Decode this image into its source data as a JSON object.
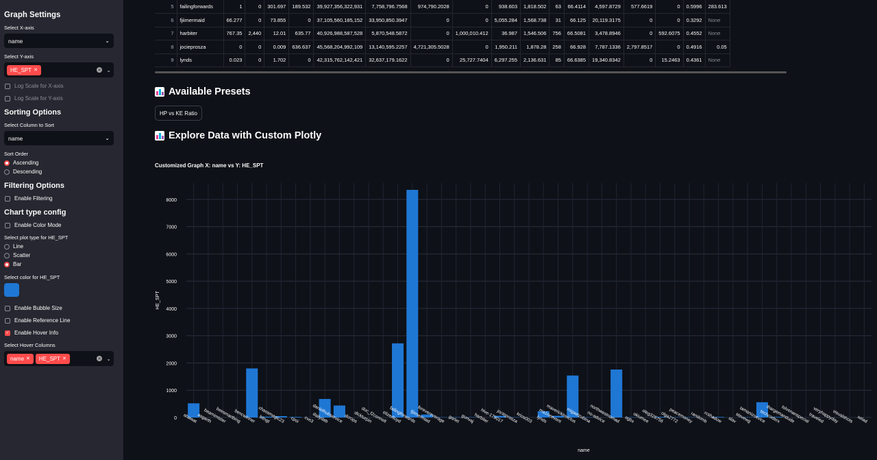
{
  "sidebar": {
    "title": "Graph Settings",
    "x_axis_label": "Select X-axis",
    "x_axis_value": "name",
    "y_axis_label": "Select Y-axis",
    "y_axis_tags": [
      "HE_SPT"
    ],
    "log_x_label": "Log Scale for X-axis",
    "log_y_label": "Log Scale for Y-axis",
    "sorting_heading": "Sorting Options",
    "sort_col_label": "Select Column to Sort",
    "sort_col_value": "name",
    "sort_order_label": "Sort Order",
    "sort_ascending": "Ascending",
    "sort_descending": "Descending",
    "filtering_heading": "Filtering Options",
    "enable_filtering": "Enable Filtering",
    "chart_type_heading": "Chart type config",
    "enable_color_mode": "Enable Color Mode",
    "plot_type_label": "Select plot type for HE_SPT",
    "plot_line": "Line",
    "plot_scatter": "Scatter",
    "plot_bar": "Bar",
    "color_label": "Select color for HE_SPT",
    "color_value": "#1f77d4",
    "enable_bubble": "Enable Bubble Size",
    "enable_reference": "Enable Reference Line",
    "enable_hover": "Enable Hover Info",
    "hover_cols_label": "Select Hover Columns",
    "hover_tags": [
      "name",
      "HE_SPT"
    ]
  },
  "table": {
    "rows": [
      [
        "5",
        "failingforwards",
        "1",
        "0",
        "301.697",
        "189.532",
        "39,927,356,322,931",
        "7,758,796.7568",
        "974,790.2028",
        "0",
        "938.603",
        "1,818.502",
        "63",
        "66.4114",
        "4,597.8729",
        "577.6619",
        "0",
        "0.5996",
        "283.613"
      ],
      [
        "6",
        "fjiimermaid",
        "66.277",
        "0",
        "73.855",
        "0",
        "37,105,560,185,152",
        "33,950,850.3947",
        "0",
        "0",
        "5,055.284",
        "1,568.738",
        "31",
        "66.125",
        "20,119.3175",
        "0",
        "0",
        "0.3292",
        "None"
      ],
      [
        "7",
        "harbiter",
        "767.35",
        "2,440",
        "12.01",
        "635.77",
        "40,926,988,587,528",
        "5,870,548.5872",
        "0",
        "1,000,010.412",
        "36.987",
        "1,546.506",
        "756",
        "66.5081",
        "3,478.8946",
        "0",
        "592.6075",
        "0.4552",
        "None"
      ],
      [
        "8",
        "jociepros​za",
        "0",
        "0",
        "0.009",
        "636.637",
        "45,568,204,992,109",
        "13,140,595.2257",
        "4,721,305.5028",
        "0",
        "1,950.211",
        "1,878.28",
        "258",
        "66.928",
        "7,787.1336",
        "2,797.8517",
        "0",
        "0.4916",
        "0.05"
      ],
      [
        "9",
        "lynds",
        "0.023",
        "0",
        "1.702",
        "0",
        "42,315,762,142,421",
        "32,637,179.1622",
        "0",
        "25,727.7404",
        "6,297.255",
        "2,136.631",
        "85",
        "66.6385",
        "19,340.8342",
        "0",
        "15.2463",
        "0.4361",
        "None"
      ]
    ]
  },
  "presets_heading": "Available Presets",
  "preset_button": "HP vs KE Ratio",
  "explore_heading": "Explore Data with Custom Plotly",
  "chart_title": "Customized Graph X: name vs Y: HE_SPT",
  "chart_data": {
    "type": "bar",
    "title": "Customized Graph X: name vs Y: HE_SPT",
    "xlabel": "name",
    "ylabel": "HE_SPT",
    "ylim": [
      0,
      8600
    ],
    "yticks": [
      0,
      1000,
      2000,
      3000,
      4000,
      5000,
      6000,
      7000,
      8000
    ],
    "color": "#1f77d4",
    "categories": [
      "ahawat",
      "asgarth",
      "beamimister",
      "beesmartbing",
      "bencwinner",
      "bitngt",
      "chaosmagic23",
      "cpoi",
      "cve3",
      "dailydab",
      "danielhubservice",
      "dcrops",
      "dickturpin",
      "doc_f2connell",
      "elizerlloyd",
      "failingforwards",
      "fjiimermaid",
      "forevereverage",
      "garlet",
      "gunvaj",
      "harbiter",
      "hive-179017",
      "jociepros​za",
      "krios003",
      "lynds",
      "ma1neevent",
      "maverickinvictus",
      "migaelzubina",
      "no-advice",
      "northwestnomad",
      "ogbx",
      "okiumee",
      "oleg326756",
      "olga2772",
      "peacemoney",
      "randomb",
      "rcshadow",
      "slav",
      "stevewg",
      "tamanizoevice",
      "techcoderx",
      "thargemandude",
      "tolvenanspecial",
      "traveled",
      "veryhappyday",
      "visualshots",
      "xelad"
    ],
    "values": [
      520,
      0,
      0,
      0,
      1800,
      30,
      50,
      20,
      0,
      680,
      440,
      0,
      0,
      0,
      2720,
      8350,
      110,
      10,
      10,
      10,
      0,
      60,
      10,
      0,
      230,
      60,
      1540,
      10,
      0,
      1760,
      10,
      0,
      20,
      10,
      10,
      0,
      20,
      0,
      10,
      560,
      20,
      0,
      0,
      0,
      0,
      0,
      0
    ]
  }
}
